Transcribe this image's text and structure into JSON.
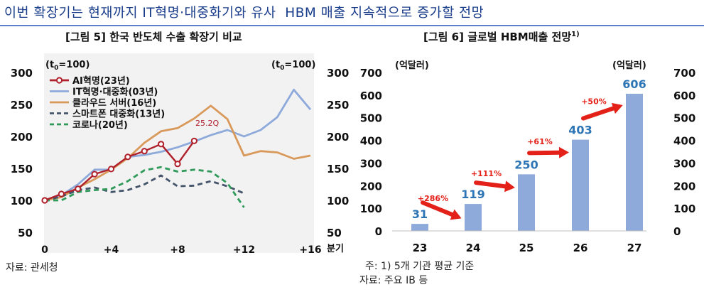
{
  "headline": "이번 확장기는 현재까지 IT혁명·대중화기와 유사  HBM 매출 지속적으로 증가할 전망",
  "left_panel": {
    "title": "[그림 5] 한국 반도체 수출 확장기 비교",
    "unit_left_base": "(t",
    "unit_left_sub": "0",
    "unit_left_tail": "=100)",
    "unit_right_base": "(t",
    "unit_right_sub": "0",
    "unit_right_tail": "=100)",
    "x_unit": "분기",
    "source": "자료: 관세청",
    "annotation": "25.2Q"
  },
  "right_panel": {
    "title": "[그림 6] 글로벌 HBM매출 전망",
    "title_sup": "1)",
    "unit_left": "(억달러)",
    "unit_right": "(억달러)",
    "note": "주: 1) 5개 기관 평균 기준",
    "source": "자료: 주요 IB 등"
  },
  "colors": {
    "ai": "#b0202a",
    "it": "#8eaadb",
    "cloud": "#d9995a",
    "smart": "#44546a",
    "covid": "#2f9a5a",
    "bar": "#8eaadb",
    "bar_label": "#2e75b6",
    "arrow": "#e32119",
    "growth_label": "#e32119"
  },
  "chart_data": [
    {
      "type": "line",
      "title": "[그림 5] 한국 반도체 수출 확장기 비교",
      "xlabel": "분기",
      "ylim": [
        50,
        300
      ],
      "xlim": [
        0,
        16
      ],
      "yticks": [
        50,
        100,
        150,
        200,
        250,
        300
      ],
      "xtick_labels": [
        "0",
        "+4",
        "+8",
        "+12",
        "+16"
      ],
      "xtick_values": [
        0,
        4,
        8,
        12,
        16
      ],
      "legend_position": "top-left",
      "series": [
        {
          "name": "AI혁명(23년)",
          "color": "ai",
          "style": "solid-marker",
          "x": [
            0,
            1,
            2,
            3,
            4,
            5,
            6,
            7,
            8,
            9
          ],
          "values": [
            100,
            110,
            118,
            141,
            149,
            168,
            177,
            188,
            157,
            193
          ]
        },
        {
          "name": "IT혁명·대중화(03년)",
          "color": "it",
          "style": "solid",
          "x": [
            0,
            1,
            2,
            3,
            4,
            5,
            6,
            7,
            8,
            9,
            10,
            11,
            12,
            13,
            14,
            15,
            16
          ],
          "values": [
            100,
            108,
            125,
            148,
            148,
            168,
            171,
            176,
            183,
            192,
            202,
            210,
            200,
            210,
            230,
            273,
            242
          ]
        },
        {
          "name": "클라우드 서버(16년)",
          "color": "cloud",
          "style": "solid",
          "x": [
            0,
            1,
            2,
            3,
            4,
            5,
            6,
            7,
            8,
            9,
            10,
            11,
            12,
            13,
            14,
            15,
            16
          ],
          "values": [
            100,
            105,
            120,
            133,
            148,
            166,
            190,
            208,
            213,
            228,
            248,
            227,
            170,
            177,
            175,
            165,
            170
          ]
        },
        {
          "name": "스마트폰 대중화(13년)",
          "color": "smart",
          "style": "dashed",
          "x": [
            0,
            1,
            2,
            3,
            4,
            5,
            6,
            7,
            8,
            9,
            10,
            11,
            12
          ],
          "values": [
            100,
            106,
            116,
            120,
            113,
            116,
            125,
            139,
            122,
            123,
            130,
            122,
            111
          ]
        },
        {
          "name": "코로나(20년)",
          "color": "covid",
          "style": "dashed",
          "x": [
            0,
            1,
            2,
            3,
            4,
            5,
            6,
            7,
            8,
            9,
            10,
            11,
            12
          ],
          "values": [
            100,
            100,
            113,
            116,
            118,
            130,
            147,
            152,
            145,
            148,
            145,
            127,
            89
          ]
        }
      ]
    },
    {
      "type": "bar",
      "title": "[그림 6] 글로벌 HBM매출 전망",
      "categories": [
        "23",
        "24",
        "25",
        "26",
        "27"
      ],
      "values": [
        31,
        119,
        250,
        403,
        606
      ],
      "ylim": [
        0,
        700
      ],
      "yticks": [
        0,
        100,
        200,
        300,
        400,
        500,
        600,
        700
      ],
      "growth_labels": [
        "+286%",
        "+111%",
        "+61%",
        "+50%"
      ]
    }
  ]
}
